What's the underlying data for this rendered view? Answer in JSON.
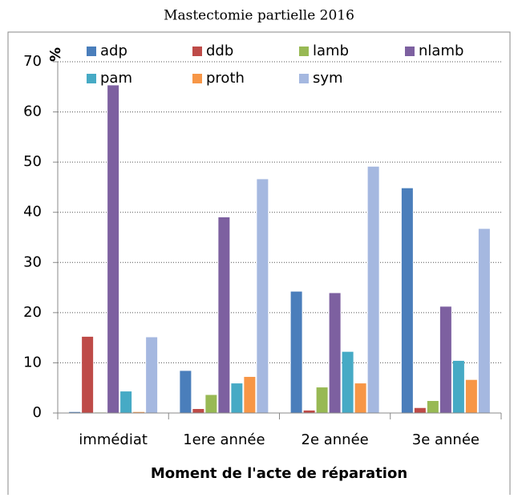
{
  "chart_data": {
    "type": "bar",
    "title": "Mastectomie partielle 2016",
    "y_label": "%",
    "x_label": "Moment de l'acte de réparation",
    "categories": [
      "immédiat",
      "1ere année",
      "2e année",
      "3e année"
    ],
    "series": [
      {
        "name": "adp",
        "color": "#4a7ebb",
        "values": [
          0.2,
          8.4,
          24.2,
          44.8
        ]
      },
      {
        "name": "ddb",
        "color": "#be4b48",
        "values": [
          15.2,
          0.8,
          0.5,
          1.0
        ]
      },
      {
        "name": "lamb",
        "color": "#98b954",
        "values": [
          0.1,
          3.6,
          5.1,
          2.4
        ]
      },
      {
        "name": "nlamb",
        "color": "#7d60a0",
        "values": [
          65.3,
          39.0,
          23.9,
          21.2
        ]
      },
      {
        "name": "pam",
        "color": "#46aac5",
        "values": [
          4.3,
          5.9,
          12.2,
          10.4
        ]
      },
      {
        "name": "proth",
        "color": "#f79646",
        "values": [
          0.2,
          7.2,
          5.9,
          6.6
        ]
      },
      {
        "name": "sym",
        "color": "#a5b8e0",
        "values": [
          15.1,
          46.6,
          49.1,
          36.7
        ]
      }
    ],
    "ylim": [
      0,
      70
    ],
    "yticks": [
      0,
      10,
      20,
      30,
      40,
      50,
      60,
      70
    ],
    "grid": true
  }
}
